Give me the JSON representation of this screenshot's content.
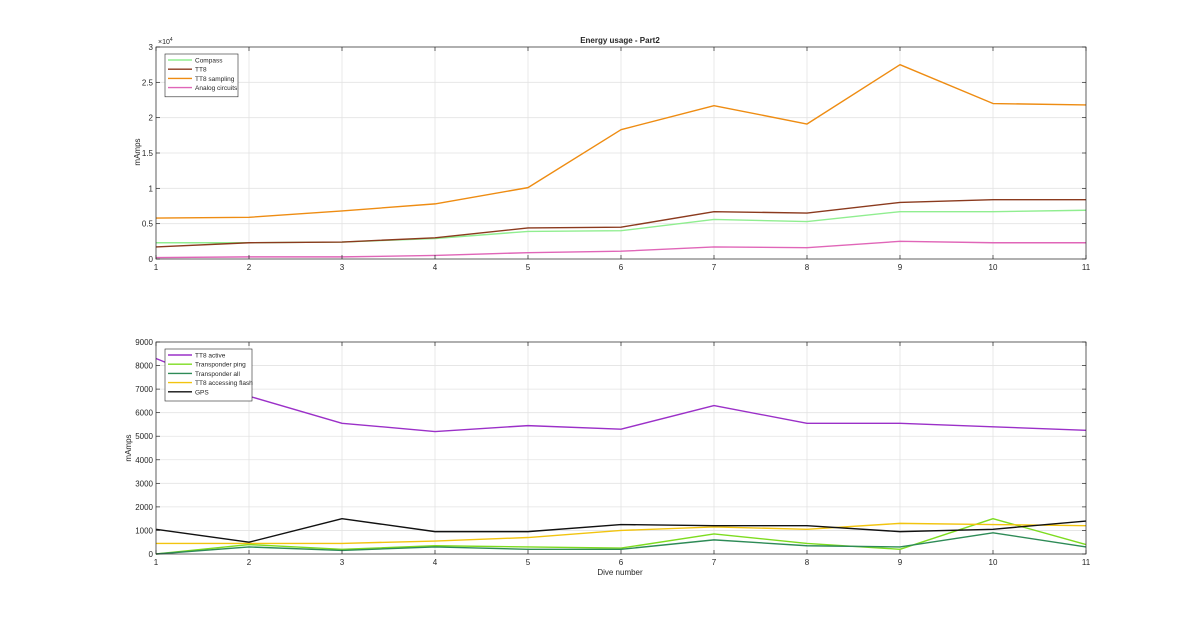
{
  "chart_data": [
    {
      "type": "line",
      "title": "Energy usage - Part2",
      "xlabel": "",
      "ylabel": "mAmps",
      "exponent_label": "×10",
      "exponent_power": "4",
      "x": [
        1,
        2,
        3,
        4,
        5,
        6,
        7,
        8,
        9,
        10,
        11
      ],
      "xlim": [
        1,
        11
      ],
      "ylim": [
        0,
        30000
      ],
      "xticks": [
        "1",
        "2",
        "3",
        "4",
        "5",
        "6",
        "7",
        "8",
        "9",
        "10",
        "11"
      ],
      "yticks": [
        0,
        5000,
        10000,
        15000,
        20000,
        25000,
        30000
      ],
      "yticklabels": [
        "0",
        "0.5",
        "1",
        "1.5",
        "2",
        "2.5",
        "3"
      ],
      "grid": true,
      "legend_position": "top-left",
      "series": [
        {
          "name": "Compass",
          "color": "#90ee90",
          "values": [
            2300,
            2300,
            2400,
            2900,
            3900,
            4000,
            5600,
            5300,
            6700,
            6700,
            6900
          ]
        },
        {
          "name": "TT8",
          "color": "#8b3a1e",
          "values": [
            1700,
            2300,
            2400,
            3000,
            4400,
            4500,
            6700,
            6500,
            8000,
            8400,
            8400
          ]
        },
        {
          "name": "TT8 sampling",
          "color": "#ee8c12",
          "values": [
            5800,
            5900,
            6800,
            7800,
            10100,
            18300,
            21700,
            19100,
            27500,
            22000,
            21800
          ]
        },
        {
          "name": "Analog circuits",
          "color": "#e066b8",
          "values": [
            200,
            300,
            300,
            500,
            900,
            1100,
            1700,
            1600,
            2500,
            2300,
            2300
          ]
        }
      ]
    },
    {
      "type": "line",
      "title": "",
      "xlabel": "Dive number",
      "ylabel": "mAmps",
      "x": [
        1,
        2,
        3,
        4,
        5,
        6,
        7,
        8,
        9,
        10,
        11
      ],
      "xlim": [
        1,
        11
      ],
      "ylim": [
        0,
        9000
      ],
      "xticks": [
        "1",
        "2",
        "3",
        "4",
        "5",
        "6",
        "7",
        "8",
        "9",
        "10",
        "11"
      ],
      "yticks": [
        0,
        1000,
        2000,
        3000,
        4000,
        5000,
        6000,
        7000,
        8000,
        9000
      ],
      "yticklabels": [
        "0",
        "1000",
        "2000",
        "3000",
        "4000",
        "5000",
        "6000",
        "7000",
        "8000",
        "9000"
      ],
      "grid": true,
      "legend_position": "top-left",
      "series": [
        {
          "name": "TT8 active",
          "color": "#9b30c8",
          "values": [
            8300,
            6700,
            5550,
            5200,
            5450,
            5300,
            6300,
            5550,
            5550,
            5400,
            5250
          ]
        },
        {
          "name": "Transponder ping",
          "color": "#7ddc1f",
          "values": [
            0,
            400,
            200,
            350,
            300,
            250,
            850,
            450,
            200,
            1500,
            400
          ]
        },
        {
          "name": "Transponder all",
          "color": "#2e8b57",
          "values": [
            0,
            300,
            150,
            300,
            200,
            200,
            600,
            350,
            300,
            900,
            300
          ]
        },
        {
          "name": "TT8 accessing flash",
          "color": "#f2c40f",
          "values": [
            450,
            450,
            450,
            550,
            700,
            1000,
            1150,
            1050,
            1300,
            1250,
            1200
          ]
        },
        {
          "name": "GPS",
          "color": "#111111",
          "values": [
            1050,
            500,
            1500,
            950,
            950,
            1250,
            1200,
            1200,
            950,
            1050,
            1400
          ]
        }
      ]
    }
  ]
}
